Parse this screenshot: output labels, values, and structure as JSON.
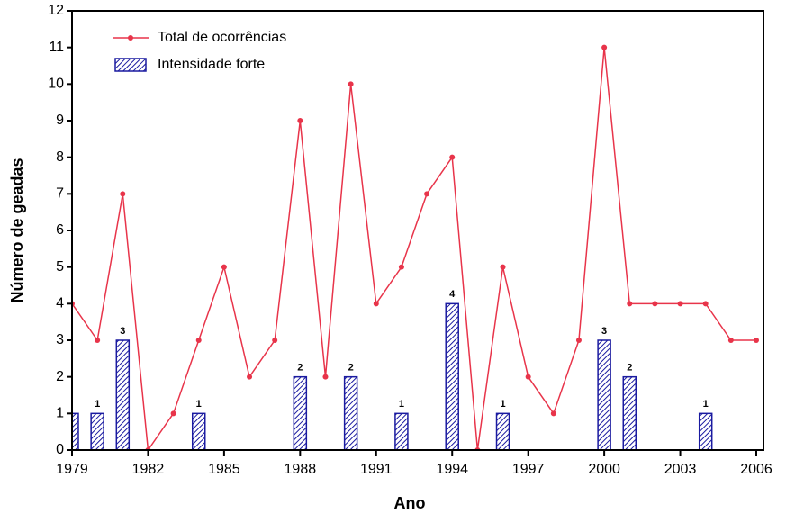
{
  "chart_data": {
    "type": "bar-line",
    "x_label": "Ano",
    "y_label": "Número de geadas",
    "x": [
      1979,
      1980,
      1981,
      1982,
      1983,
      1984,
      1985,
      1986,
      1987,
      1988,
      1989,
      1990,
      1991,
      1992,
      1993,
      1994,
      1995,
      1996,
      1997,
      1998,
      1999,
      2000,
      2001,
      2002,
      2003,
      2004,
      2005,
      2006
    ],
    "series": [
      {
        "name": "Total de ocorrências",
        "kind": "line",
        "color": "#e8344a",
        "values": [
          4,
          3,
          7,
          0,
          1,
          3,
          5,
          2,
          3,
          9,
          2,
          10,
          4,
          5,
          7,
          8,
          0,
          5,
          2,
          1,
          3,
          11,
          4,
          4,
          4,
          4,
          3,
          3
        ]
      },
      {
        "name": "Intensidade forte",
        "kind": "bar",
        "color": "#1a1aa0",
        "values": [
          1,
          1,
          3,
          null,
          null,
          1,
          null,
          null,
          null,
          2,
          null,
          2,
          null,
          1,
          null,
          4,
          null,
          1,
          null,
          null,
          null,
          3,
          2,
          null,
          null,
          1,
          null,
          null
        ],
        "value_labels": [
          null,
          "1",
          "3",
          null,
          null,
          "1",
          null,
          null,
          null,
          "2",
          null,
          "2",
          null,
          "1",
          null,
          "4",
          null,
          "1",
          null,
          null,
          null,
          "3",
          "2",
          null,
          null,
          "1",
          null,
          null
        ]
      }
    ],
    "xlim": [
      1979,
      2006
    ],
    "xticks": [
      1979,
      1982,
      1985,
      1988,
      1991,
      1994,
      1997,
      2000,
      2003,
      2006
    ],
    "ylim": [
      0,
      12
    ],
    "yticks": [
      0,
      1,
      2,
      3,
      4,
      5,
      6,
      7,
      8,
      9,
      10,
      11,
      12
    ],
    "legend": "upper-left"
  }
}
